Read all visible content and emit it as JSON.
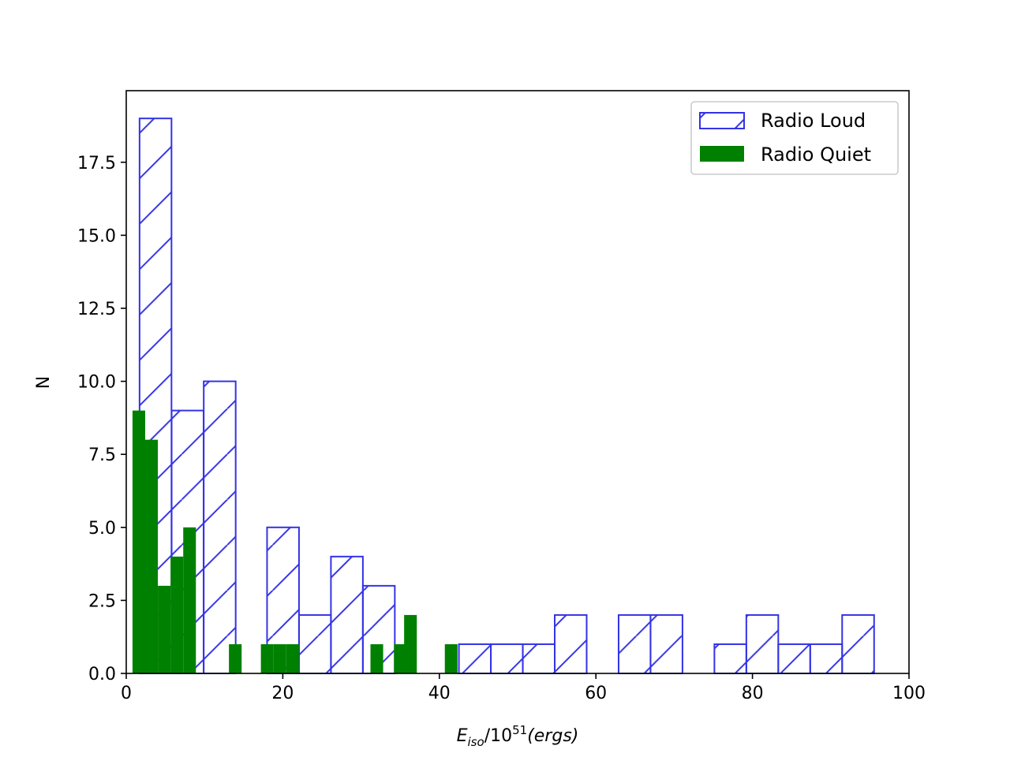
{
  "chart_data": {
    "type": "bar",
    "title": "",
    "xlabel": {
      "main": "E",
      "sub": "iso",
      "rest": "/10",
      "sup": "51",
      "unit": "(ergs)"
    },
    "ylabel": "N",
    "xlim": [
      0,
      100
    ],
    "ylim": [
      0,
      19.95
    ],
    "xticks": [
      0,
      20,
      40,
      60,
      80,
      100
    ],
    "xtick_labels": [
      "0",
      "20",
      "40",
      "60",
      "80",
      "100"
    ],
    "yticks": [
      0,
      2.5,
      5,
      7.5,
      10,
      12.5,
      15,
      17.5
    ],
    "ytick_labels": [
      "0.0",
      "2.5",
      "5.0",
      "7.5",
      "10.0",
      "12.5",
      "15.0",
      "17.5"
    ],
    "grid": false,
    "legend_position": "top-right",
    "series": [
      {
        "name": "Radio Loud",
        "style": "hatched-outline",
        "color": "#3333e6",
        "bin_width": 4.08,
        "bins": [
          {
            "x0": 1.7,
            "n": 19
          },
          {
            "x0": 5.8,
            "n": 9
          },
          {
            "x0": 9.9,
            "n": 10
          },
          {
            "x0": 17.99,
            "n": 5
          },
          {
            "x0": 22.07,
            "n": 2
          },
          {
            "x0": 26.15,
            "n": 4
          },
          {
            "x0": 30.23,
            "n": 3
          },
          {
            "x0": 42.5,
            "n": 1
          },
          {
            "x0": 46.58,
            "n": 1
          },
          {
            "x0": 50.66,
            "n": 1
          },
          {
            "x0": 54.74,
            "n": 2
          },
          {
            "x0": 62.9,
            "n": 2
          },
          {
            "x0": 66.98,
            "n": 2
          },
          {
            "x0": 75.14,
            "n": 1
          },
          {
            "x0": 79.22,
            "n": 2
          },
          {
            "x0": 83.3,
            "n": 1
          },
          {
            "x0": 87.38,
            "n": 1
          },
          {
            "x0": 91.46,
            "n": 2
          }
        ]
      },
      {
        "name": "Radio Quiet",
        "style": "filled",
        "color": "#008000",
        "bin_width": 1.62,
        "bins": [
          {
            "x0": 0.8,
            "n": 9
          },
          {
            "x0": 2.42,
            "n": 8
          },
          {
            "x0": 4.04,
            "n": 3
          },
          {
            "x0": 5.66,
            "n": 4
          },
          {
            "x0": 7.28,
            "n": 5
          },
          {
            "x0": 13.12,
            "n": 1
          },
          {
            "x0": 17.2,
            "n": 1
          },
          {
            "x0": 18.82,
            "n": 1
          },
          {
            "x0": 20.44,
            "n": 1
          },
          {
            "x0": 31.2,
            "n": 1
          },
          {
            "x0": 34.2,
            "n": 1
          },
          {
            "x0": 35.5,
            "n": 2
          },
          {
            "x0": 40.7,
            "n": 1
          }
        ]
      }
    ]
  }
}
